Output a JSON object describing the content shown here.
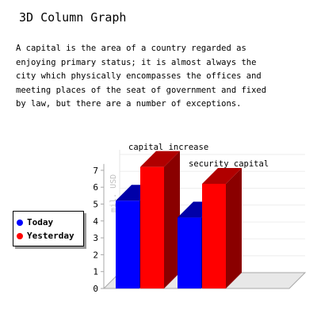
{
  "page": {
    "title": "3D Column Graph",
    "intro_lines": [
      "A capital is the area of a country regarded as",
      "enjoying primary status; it is almost always the",
      "city which physically encompasses the offices and",
      "meeting places of the seat of government and fixed",
      "by law, but there are a number of exceptions."
    ]
  },
  "chart_data": {
    "type": "bar",
    "title": "",
    "xlabel": "",
    "ylabel": "mil. USD",
    "ylim": [
      0,
      7
    ],
    "yticks": [
      0,
      1,
      2,
      3,
      4,
      5,
      6,
      7
    ],
    "categories": [
      "capital increase",
      "security capital"
    ],
    "series": [
      {
        "name": "Today",
        "values": [
          5.2,
          4.2
        ],
        "color": "#0000ff",
        "side_color": "#00008a",
        "top_color": "#0000a8"
      },
      {
        "name": "Yesterday",
        "values": [
          7.2,
          6.2
        ],
        "color": "#ff0000",
        "side_color": "#8a0000",
        "top_color": "#b00000"
      }
    ],
    "grid": true,
    "three_d": true,
    "legend_placement": "left"
  }
}
